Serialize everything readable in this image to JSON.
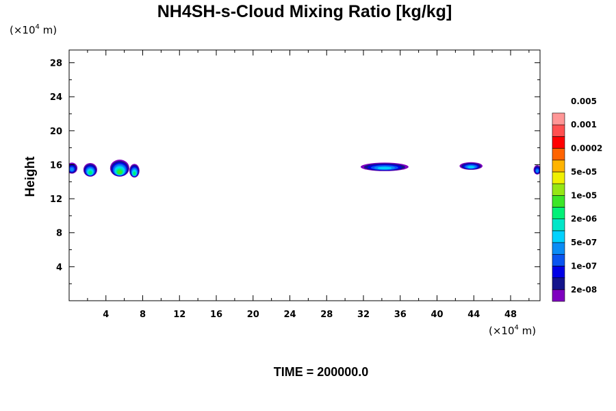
{
  "chart_data": {
    "type": "heatmap",
    "title": "NH4SH-s-Cloud Mixing Ratio [kg/kg]",
    "ylabel": "Height",
    "xlabel": "",
    "x_unit_prefix": "(×10",
    "x_unit_exp": "4",
    "x_unit_suffix": " m)",
    "y_unit_prefix": "(×10",
    "y_unit_exp": "4",
    "y_unit_suffix": " m)",
    "xlim": [
      0,
      51.2
    ],
    "ylim": [
      0,
      29.5
    ],
    "x_ticks": [
      4,
      8,
      12,
      16,
      20,
      24,
      28,
      32,
      36,
      40,
      44,
      48
    ],
    "x_tick_labels": [
      "4",
      "8",
      "12",
      "16",
      "20",
      "24",
      "28",
      "32",
      "36",
      "40",
      "44",
      "48"
    ],
    "y_ticks": [
      4,
      8,
      12,
      16,
      20,
      24,
      28
    ],
    "y_tick_labels": [
      "4",
      "8",
      "12",
      "16",
      "20",
      "24",
      "28"
    ],
    "grid": false,
    "colorbar": {
      "colors": [
        "#7f00bf",
        "#14148c",
        "#0000e6",
        "#0a55f0",
        "#0a8cf5",
        "#00d2ff",
        "#00e6c8",
        "#00f078",
        "#3ce628",
        "#96e614",
        "#f0f000",
        "#ffb400",
        "#ff6400",
        "#ff0000",
        "#ff5050",
        "#ff9696"
      ],
      "labels": [
        "2e-08",
        "1e-07",
        "5e-07",
        "2e-06",
        "1e-05",
        "5e-05",
        "0.0002",
        "0.001",
        "0.005"
      ]
    },
    "blobs": [
      {
        "x_center": 0.3,
        "z_center": 15.6,
        "half_width": 0.6,
        "half_height": 0.65,
        "peak_level": 4
      },
      {
        "x_center": 2.3,
        "z_center": 15.4,
        "half_width": 0.75,
        "half_height": 0.8,
        "peak_level": 7
      },
      {
        "x_center": 5.5,
        "z_center": 15.6,
        "half_width": 1.05,
        "half_height": 1.0,
        "peak_level": 8
      },
      {
        "x_center": 7.1,
        "z_center": 15.3,
        "half_width": 0.55,
        "half_height": 0.8,
        "peak_level": 7
      },
      {
        "x_center": 34.3,
        "z_center": 15.75,
        "half_width": 2.6,
        "half_height": 0.5,
        "peak_level": 5
      },
      {
        "x_center": 43.7,
        "z_center": 15.85,
        "half_width": 1.25,
        "half_height": 0.45,
        "peak_level": 5
      },
      {
        "x_center": 50.9,
        "z_center": 15.4,
        "half_width": 0.4,
        "half_height": 0.55,
        "peak_level": 4
      }
    ]
  },
  "time_label": "TIME = 200000.0"
}
